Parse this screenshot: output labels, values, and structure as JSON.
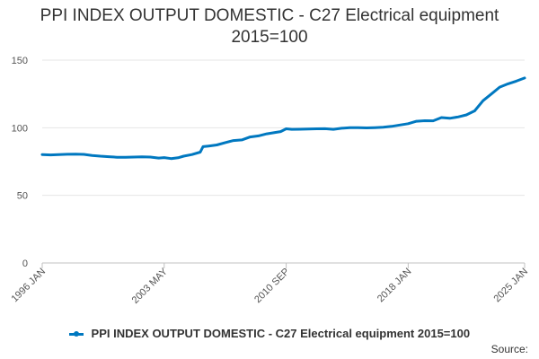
{
  "title_line1": "PPI INDEX OUTPUT DOMESTIC - C27 Electrical equipment",
  "title_line2": "2015=100",
  "source_label": "Source:",
  "chart_data": {
    "type": "line",
    "title": "PPI INDEX OUTPUT DOMESTIC - C27 Electrical equipment 2015=100",
    "xlabel": "",
    "ylabel": "",
    "x_range": [
      "1996-01",
      "2025-01"
    ],
    "x_tick_labels": [
      "1996 JAN",
      "2003 MAY",
      "2010 SEP",
      "2018 JAN",
      "2025 JAN"
    ],
    "y_ticks": [
      0,
      50,
      100,
      150
    ],
    "ylim": [
      0,
      150
    ],
    "grid": true,
    "legend_position": "bottom",
    "color": "#0078c0",
    "series": [
      {
        "name": "PPI INDEX OUTPUT DOMESTIC - C27 Electrical equipment 2015=100",
        "points": [
          [
            "1996-01",
            80.2
          ],
          [
            "1996-07",
            79.9
          ],
          [
            "1997-01",
            80.1
          ],
          [
            "1997-07",
            80.4
          ],
          [
            "1998-01",
            80.5
          ],
          [
            "1998-07",
            80.3
          ],
          [
            "1999-01",
            79.5
          ],
          [
            "1999-07",
            79.0
          ],
          [
            "2000-01",
            78.6
          ],
          [
            "2000-07",
            78.2
          ],
          [
            "2001-01",
            78.1
          ],
          [
            "2001-07",
            78.3
          ],
          [
            "2002-01",
            78.5
          ],
          [
            "2002-07",
            78.3
          ],
          [
            "2003-01",
            77.6
          ],
          [
            "2003-05",
            77.9
          ],
          [
            "2003-10",
            77.2
          ],
          [
            "2004-03",
            77.8
          ],
          [
            "2004-07",
            79.0
          ],
          [
            "2005-01",
            80.2
          ],
          [
            "2005-07",
            82.0
          ],
          [
            "2005-09",
            86.0
          ],
          [
            "2006-01",
            86.5
          ],
          [
            "2006-07",
            87.3
          ],
          [
            "2007-01",
            89.0
          ],
          [
            "2007-07",
            90.5
          ],
          [
            "2008-01",
            91.0
          ],
          [
            "2008-07",
            93.2
          ],
          [
            "2009-01",
            94.0
          ],
          [
            "2009-07",
            95.5
          ],
          [
            "2010-01",
            96.5
          ],
          [
            "2010-05",
            97.2
          ],
          [
            "2010-09",
            99.2
          ],
          [
            "2011-01",
            98.8
          ],
          [
            "2011-07",
            98.9
          ],
          [
            "2012-01",
            99.0
          ],
          [
            "2012-07",
            99.2
          ],
          [
            "2013-01",
            99.3
          ],
          [
            "2013-07",
            98.8
          ],
          [
            "2014-01",
            99.6
          ],
          [
            "2014-07",
            100.0
          ],
          [
            "2015-01",
            100.0
          ],
          [
            "2015-07",
            99.9
          ],
          [
            "2016-01",
            100.1
          ],
          [
            "2016-07",
            100.4
          ],
          [
            "2017-01",
            101.0
          ],
          [
            "2017-07",
            102.0
          ],
          [
            "2018-01",
            103.0
          ],
          [
            "2018-07",
            104.8
          ],
          [
            "2019-01",
            105.2
          ],
          [
            "2019-07",
            105.1
          ],
          [
            "2020-01",
            107.5
          ],
          [
            "2020-07",
            107.0
          ],
          [
            "2021-01",
            108.0
          ],
          [
            "2021-07",
            109.5
          ],
          [
            "2022-01",
            112.5
          ],
          [
            "2022-07",
            120.0
          ],
          [
            "2023-01",
            125.0
          ],
          [
            "2023-07",
            130.0
          ],
          [
            "2024-01",
            132.5
          ],
          [
            "2024-07",
            134.5
          ],
          [
            "2025-01",
            136.8
          ]
        ]
      }
    ]
  }
}
